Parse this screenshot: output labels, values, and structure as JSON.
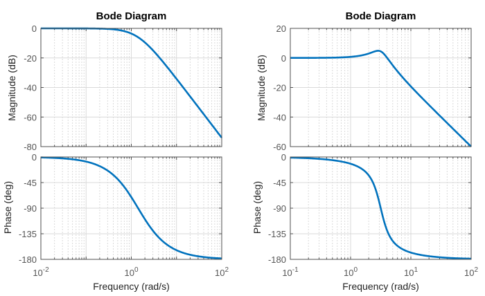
{
  "chart_data": [
    {
      "type": "line",
      "title": "Bode Diagram",
      "xlabel": "Frequency  (rad/s)",
      "xscale": "log",
      "xlim": [
        0.01,
        100
      ],
      "xticks": [
        {
          "base": "10",
          "exp": "-2",
          "value": 0.01
        },
        {
          "base": "10",
          "exp": "0",
          "value": 1
        },
        {
          "base": "10",
          "exp": "2",
          "value": 100
        }
      ],
      "grid": true,
      "system": {
        "num": 2,
        "den": [
          1,
          2.83,
          2
        ]
      },
      "magnitude": {
        "ylabel": "Magnitude (dB)",
        "ylim": [
          -80,
          0
        ],
        "yticks": [
          0,
          -20,
          -40,
          -60,
          -80
        ],
        "series": [
          {
            "name": "magnitude",
            "x": [
              0.01,
              0.1,
              0.3,
              1,
              2,
              3,
              10,
              30,
              100
            ],
            "y": [
              0,
              -0.04,
              -0.4,
              -3.5,
              -9.1,
              -14.2,
              -34.2,
              -53.1,
              -74.0
            ]
          }
        ]
      },
      "phase": {
        "ylabel": "Phase (deg)",
        "ylim": [
          -180,
          0
        ],
        "yticks": [
          0,
          -45,
          -90,
          -135,
          -180
        ],
        "series": [
          {
            "name": "phase",
            "x": [
              0.01,
              0.1,
              0.3,
              1,
              1.414,
              2,
              3,
              10,
              30,
              100
            ],
            "y": [
              -0.8,
              -8.1,
              -23.9,
              -70.5,
              -90,
              -109.5,
              -129.9,
              -164.0,
              -174.6,
              -178.4
            ]
          }
        ]
      }
    },
    {
      "type": "line",
      "title": "Bode Diagram",
      "xlabel": "Frequency  (rad/s)",
      "xscale": "log",
      "xlim": [
        0.1,
        100
      ],
      "xticks": [
        {
          "base": "10",
          "exp": "-1",
          "value": 0.1
        },
        {
          "base": "10",
          "exp": "0",
          "value": 1
        },
        {
          "base": "10",
          "exp": "1",
          "value": 10
        },
        {
          "base": "10",
          "exp": "2",
          "value": 100
        }
      ],
      "grid": true,
      "system": {
        "num": 10,
        "den": [
          1,
          1.9,
          10
        ]
      },
      "magnitude": {
        "ylabel": "Magnitude (dB)",
        "ylim": [
          -60,
          20
        ],
        "yticks": [
          20,
          0,
          -20,
          -40,
          -60
        ],
        "series": [
          {
            "name": "magnitude",
            "x": [
              0.1,
              0.3,
              1,
              2,
              2.9,
              3.5,
              5,
              10,
              30,
              100
            ],
            "y": [
              0,
              0.1,
              0.8,
              3.0,
              4.7,
              3.5,
              -4.1,
              -19.3,
              -39.1,
              -59.1
            ]
          }
        ]
      },
      "phase": {
        "ylabel": "Phase (deg)",
        "ylim": [
          -180,
          0
        ],
        "yticks": [
          0,
          -45,
          -90,
          -135,
          -180
        ],
        "series": [
          {
            "name": "phase",
            "x": [
              0.1,
              0.3,
              1,
              2,
              3.16,
              5,
              10,
              30,
              100
            ],
            "y": [
              -1.1,
              -3.3,
              -11.9,
              -32.6,
              -90,
              -154.0,
              -168.1,
              -176.2,
              -178.9
            ]
          }
        ]
      }
    }
  ],
  "colors": {
    "curve": "#0072bd"
  }
}
